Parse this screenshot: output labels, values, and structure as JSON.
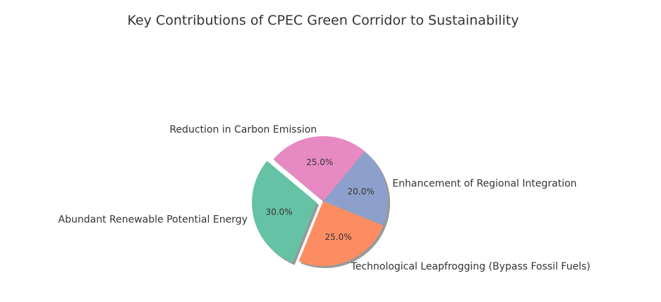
{
  "chart_data": {
    "type": "pie",
    "title": "Key Contributions of CPEC Green Corridor to Sustainability",
    "start_angle_deg": 140,
    "direction": "counterclockwise",
    "shadow": true,
    "slices": [
      {
        "label": "Abundant Renewable Potential Energy",
        "value": 30,
        "pct_text": "30.0%",
        "color": "#66c2a5",
        "exploded": true
      },
      {
        "label": "Technological Leapfrogging (Bypass Fossil Fuels)",
        "value": 25,
        "pct_text": "25.0%",
        "color": "#fc8d62",
        "exploded": false
      },
      {
        "label": "Enhancement of Regional Integration",
        "value": 20,
        "pct_text": "20.0%",
        "color": "#8da0cb",
        "exploded": false
      },
      {
        "label": "Reduction in Carbon Emission",
        "value": 25,
        "pct_text": "25.0%",
        "color": "#e78ac3",
        "exploded": false
      }
    ]
  }
}
